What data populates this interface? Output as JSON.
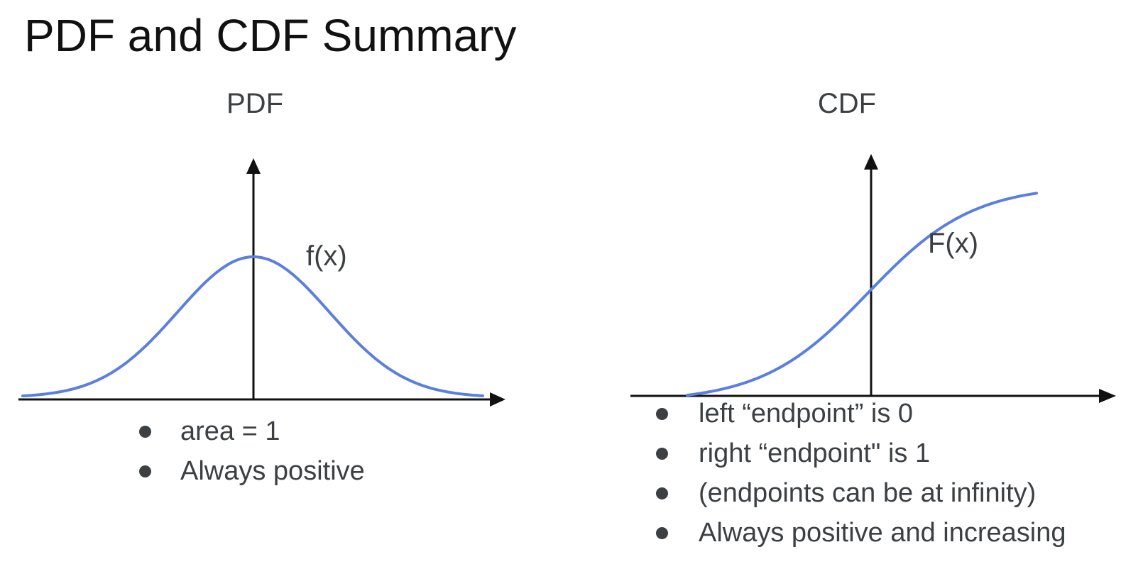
{
  "slide": {
    "title": "PDF and CDF Summary"
  },
  "pdf_panel": {
    "title": "PDF",
    "curve_label": "f(x)",
    "bullets": [
      "area = 1",
      "Always positive"
    ]
  },
  "cdf_panel": {
    "title": "CDF",
    "curve_label": "F(x)",
    "bullets": [
      "left “endpoint” is 0",
      "right “endpoint\" is 1",
      "(endpoints can be at infinity)",
      "Always positive and increasing"
    ]
  },
  "colors": {
    "curve": "#5b7fde",
    "axis": "#111111",
    "text": "#3c4043"
  }
}
